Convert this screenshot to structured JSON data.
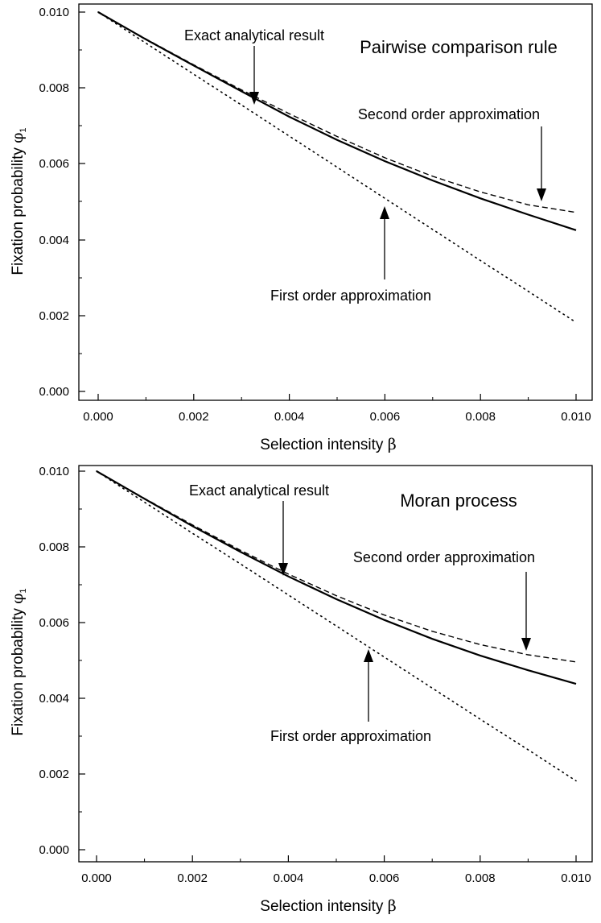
{
  "chart_data": [
    {
      "type": "line",
      "title": "Pairwise comparison rule",
      "xlabel": "Selection intensity",
      "xlabel_symbol": "β",
      "ylabel": "Fixation probability",
      "ylabel_symbol": "φ",
      "ylabel_subscript": "1",
      "xlim": [
        0,
        0.01
      ],
      "ylim": [
        -0.0002,
        0.0102
      ],
      "xticks": [
        "0.000",
        "0.002",
        "0.004",
        "0.006",
        "0.008",
        "0.010"
      ],
      "yticks": [
        "0.000",
        "0.002",
        "0.004",
        "0.006",
        "0.008",
        "0.010"
      ],
      "series": [
        {
          "name": "Exact analytical result",
          "style": "solid",
          "x": [
            0,
            0.001,
            0.002,
            0.003,
            0.004,
            0.005,
            0.006,
            0.007,
            0.008,
            0.009,
            0.01
          ],
          "y": [
            0.01,
            0.00928,
            0.00859,
            0.00791,
            0.00724,
            0.00663,
            0.00607,
            0.00556,
            0.00509,
            0.00466,
            0.00425
          ]
        },
        {
          "name": "Second order approximation",
          "style": "dashed",
          "x": [
            0,
            0.001,
            0.002,
            0.003,
            0.004,
            0.005,
            0.006,
            0.007,
            0.008,
            0.009,
            0.01
          ],
          "y": [
            0.01,
            0.00929,
            0.00861,
            0.00795,
            0.00732,
            0.00672,
            0.00616,
            0.00567,
            0.00526,
            0.00492,
            0.00472
          ]
        },
        {
          "name": "First order approximation",
          "style": "dotted",
          "x": [
            0,
            0.001,
            0.002,
            0.003,
            0.004,
            0.005,
            0.006,
            0.007,
            0.008,
            0.009,
            0.01
          ],
          "y": [
            0.01,
            0.00918,
            0.00836,
            0.00755,
            0.00673,
            0.00591,
            0.00509,
            0.00427,
            0.00345,
            0.00264,
            0.00182
          ]
        }
      ],
      "annotations": [
        {
          "text": "Exact analytical result",
          "series": "Exact analytical result",
          "point": [
            0.0033,
            0.0077
          ],
          "direction": "down"
        },
        {
          "text": "Second order approximation",
          "series": "Second order approximation",
          "point": [
            0.0092,
            0.00495
          ],
          "direction": "down"
        },
        {
          "text": "First order approximation",
          "series": "First order approximation",
          "point": [
            0.006,
            0.0052
          ],
          "direction": "up"
        }
      ]
    },
    {
      "type": "line",
      "title": "Moran process",
      "xlabel": "Selection intensity",
      "xlabel_symbol": "β",
      "ylabel": "Fixation probability",
      "ylabel_symbol": "φ",
      "ylabel_subscript": "1",
      "xlim": [
        0,
        0.01
      ],
      "ylim": [
        -0.0002,
        0.0102
      ],
      "xticks": [
        "0.000",
        "0.002",
        "0.004",
        "0.006",
        "0.008",
        "0.010"
      ],
      "yticks": [
        "0.000",
        "0.002",
        "0.004",
        "0.006",
        "0.008",
        "0.010"
      ],
      "series": [
        {
          "name": "Exact analytical result",
          "style": "solid",
          "x": [
            0,
            0.001,
            0.002,
            0.003,
            0.004,
            0.005,
            0.006,
            0.007,
            0.008,
            0.009,
            0.01
          ],
          "y": [
            0.01,
            0.00927,
            0.00855,
            0.00787,
            0.00722,
            0.00662,
            0.00607,
            0.00557,
            0.00513,
            0.00474,
            0.00438
          ]
        },
        {
          "name": "Second order approximation",
          "style": "dashed",
          "x": [
            0,
            0.001,
            0.002,
            0.003,
            0.004,
            0.005,
            0.006,
            0.007,
            0.008,
            0.009,
            0.01
          ],
          "y": [
            0.01,
            0.00928,
            0.00858,
            0.00791,
            0.00728,
            0.00671,
            0.0062,
            0.00577,
            0.00542,
            0.00515,
            0.00496
          ]
        },
        {
          "name": "First order approximation",
          "style": "dotted",
          "x": [
            0,
            0.001,
            0.002,
            0.003,
            0.004,
            0.005,
            0.006,
            0.007,
            0.008,
            0.009,
            0.01
          ],
          "y": [
            0.01,
            0.00918,
            0.00836,
            0.00755,
            0.00673,
            0.00591,
            0.00509,
            0.00427,
            0.00345,
            0.00264,
            0.00182
          ]
        }
      ],
      "annotations": [
        {
          "text": "Exact analytical result",
          "series": "Exact analytical result",
          "point": [
            0.0039,
            0.00728
          ],
          "direction": "down"
        },
        {
          "text": "Second order approximation",
          "series": "Second order approximation",
          "point": [
            0.0089,
            0.00522
          ],
          "direction": "down"
        },
        {
          "text": "First order approximation",
          "series": "First order approximation",
          "point": [
            0.0056,
            0.0054
          ],
          "direction": "up"
        }
      ]
    }
  ]
}
